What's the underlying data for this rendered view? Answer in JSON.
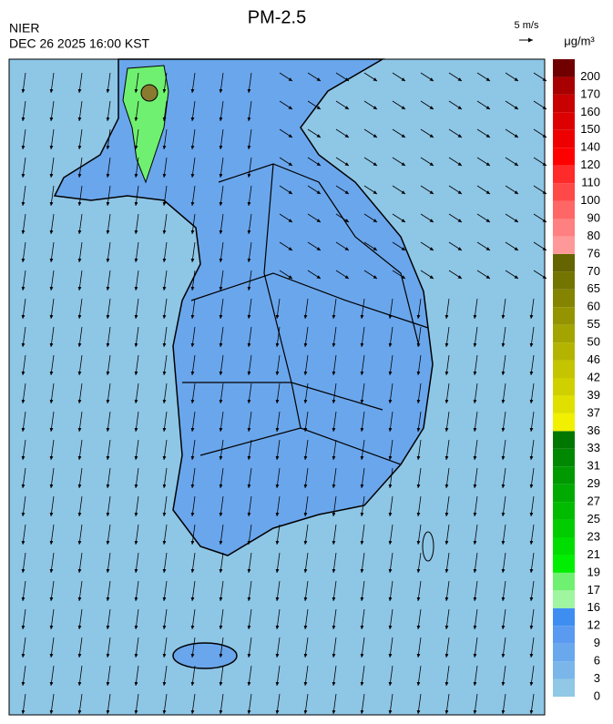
{
  "header": {
    "title": "PM-2.5",
    "agency": "NIER",
    "timestamp": "DEC 26 2025 16:00 KST",
    "wind_scale": "5 m/s"
  },
  "colorbar": {
    "unit": "μg/m³",
    "levels": [
      0,
      3,
      6,
      9,
      12,
      16,
      17,
      19,
      21,
      23,
      25,
      27,
      29,
      31,
      33,
      36,
      37,
      39,
      42,
      46,
      50,
      55,
      60,
      65,
      70,
      76,
      80,
      90,
      100,
      110,
      120,
      140,
      150,
      160,
      170,
      200
    ],
    "colors": [
      "#90c8e6",
      "#7ab6ea",
      "#6aa8ee",
      "#5a9af0",
      "#3e8ef2",
      "#a0f5a0",
      "#70f070",
      "#00ee00",
      "#00dd00",
      "#00cc00",
      "#00bb00",
      "#00aa00",
      "#009900",
      "#008800",
      "#007700",
      "#f0f000",
      "#e0e000",
      "#d0d000",
      "#c4c400",
      "#b4b400",
      "#a4a400",
      "#949400",
      "#848400",
      "#747400",
      "#646400",
      "#ff9999",
      "#ff8080",
      "#ff6666",
      "#ff4848",
      "#ff2a2a",
      "#ff0000",
      "#ee0000",
      "#dd0000",
      "#c80000",
      "#a80000",
      "#700000"
    ]
  }
}
